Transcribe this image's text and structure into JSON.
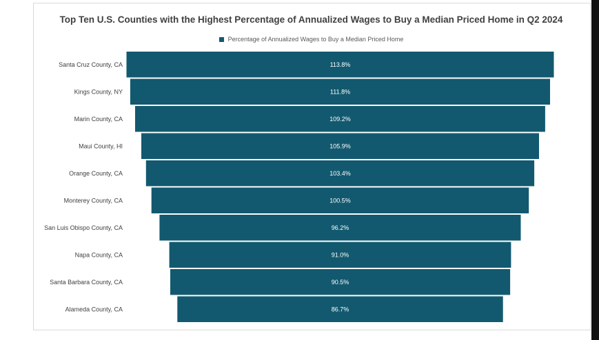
{
  "chart_data": {
    "type": "bar",
    "orientation": "horizontal-funnel",
    "title": "Top Ten U.S. Counties with the Highest Percentage of Annualized Wages to Buy a Median Priced Home in Q2 2024",
    "categories": [
      "Santa Cruz County, CA",
      "Kings County, NY",
      "Marin County, CA",
      "Maui County, HI",
      "Orange County, CA",
      "Monterey County, CA",
      "San Luis Obispo County, CA",
      "Napa County, CA",
      "Santa Barbara County, CA",
      "Alameda County, CA"
    ],
    "series": [
      {
        "name": "Percentage of Annualized Wages to Buy a Median Priced Home",
        "values": [
          113.8,
          111.8,
          109.2,
          105.9,
          103.4,
          100.5,
          96.2,
          91.0,
          90.5,
          86.7
        ],
        "labels": [
          "113.8%",
          "111.8%",
          "109.2%",
          "105.9%",
          "103.4%",
          "100.5%",
          "96.2%",
          "91.0%",
          "90.5%",
          "86.7%"
        ]
      }
    ],
    "legend_position": "top",
    "bar_color": "#12596f",
    "label_color": "#ffffff",
    "grid": false
  }
}
